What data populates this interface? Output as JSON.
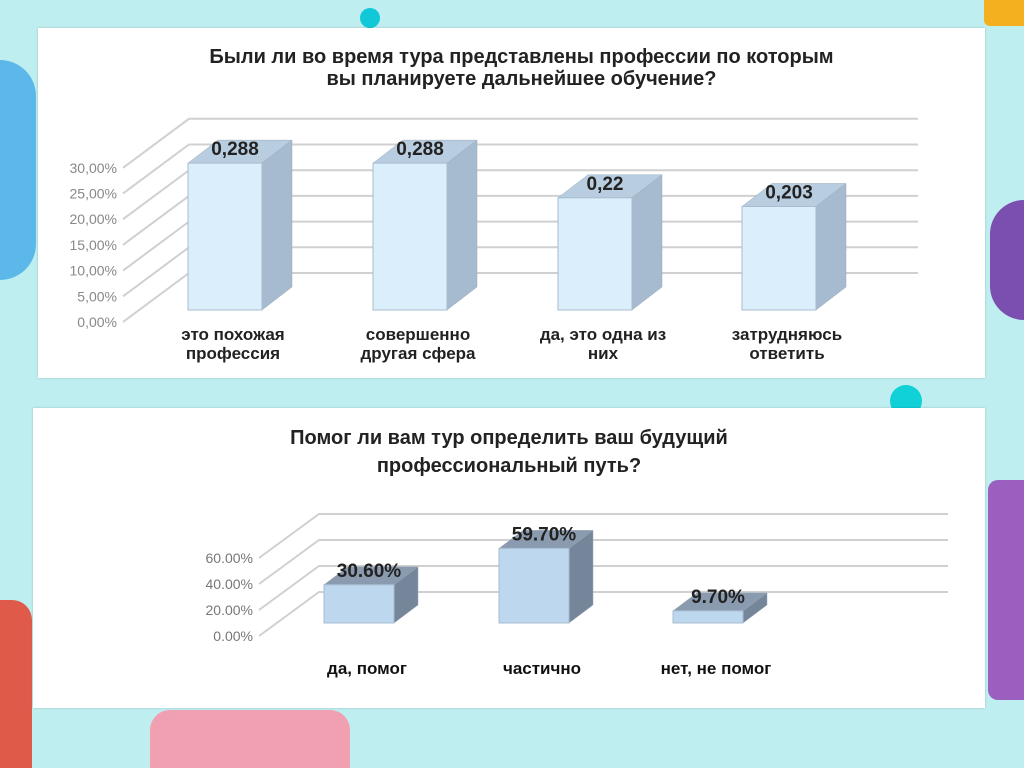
{
  "chart_data": [
    {
      "type": "bar",
      "title_line1": "Были ли во время тура представлены профессии по которым",
      "title_line2": "вы планируете дальнейшее обучение?",
      "categories": [
        [
          "это похожая",
          "профессия"
        ],
        [
          "совершенно",
          "другая сфера"
        ],
        [
          "да, это одна из",
          "них"
        ],
        [
          "затрудняюсь",
          "ответить"
        ]
      ],
      "values": [
        0.288,
        0.288,
        0.22,
        0.203
      ],
      "data_labels": [
        "0,288",
        "0,288",
        "0,22",
        "0,203"
      ],
      "yticks": [
        "0,00%",
        "5,00%",
        "10,00%",
        "15,00%",
        "20,00%",
        "25,00%",
        "30,00%"
      ],
      "ylim": [
        0,
        0.3
      ],
      "grid": true,
      "3d": true,
      "colors": {
        "front": "#dbeefb",
        "top": "#b8cde0",
        "side": "#a7bbd0"
      }
    },
    {
      "type": "bar",
      "title_line1": "Помог ли вам тур определить ваш будущий",
      "title_line2": "профессиональный путь?",
      "categories": [
        [
          "да, помог"
        ],
        [
          "частично"
        ],
        [
          "нет, не помог"
        ]
      ],
      "values": [
        0.306,
        0.597,
        0.097
      ],
      "data_labels": [
        "30.60%",
        "59.70%",
        "9.70%"
      ],
      "yticks": [
        "0.00%",
        "20.00%",
        "40.00%",
        "60.00%"
      ],
      "ylim": [
        0,
        0.6
      ],
      "grid": true,
      "3d": true,
      "colors": {
        "front": "#bdd7ee",
        "top": "#8a9bb0",
        "side": "#76869a"
      }
    }
  ]
}
